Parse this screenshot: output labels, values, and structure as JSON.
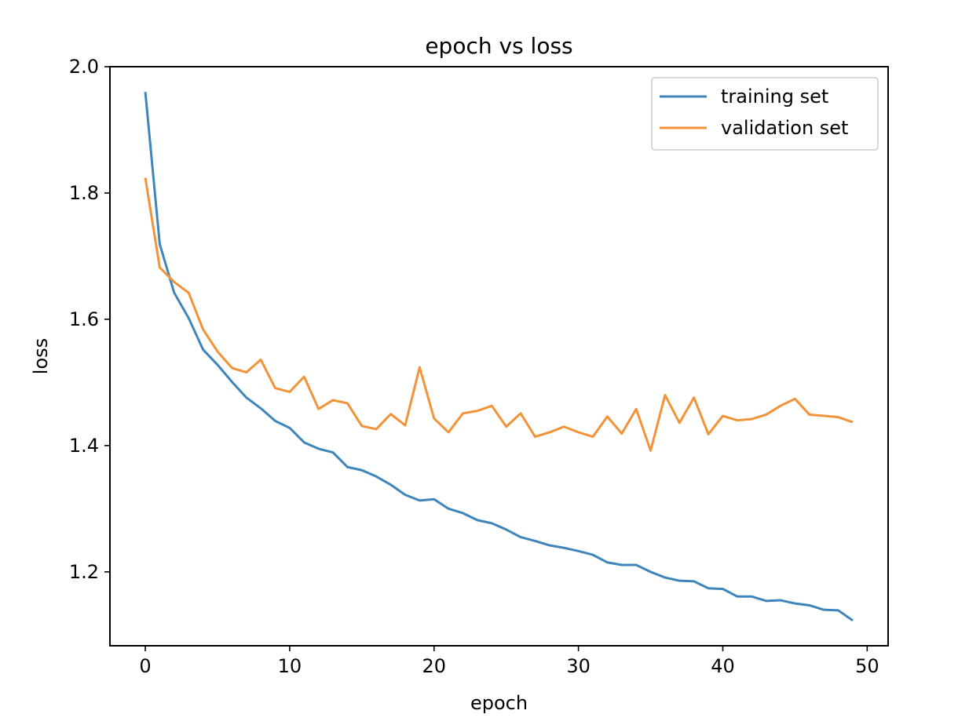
{
  "chart_data": {
    "type": "line",
    "title": "epoch vs loss",
    "xlabel": "epoch",
    "ylabel": "loss",
    "xlim": [
      -2.45,
      51.45
    ],
    "ylim": [
      1.083,
      2.0
    ],
    "xticks": [
      0,
      10,
      20,
      30,
      40,
      50
    ],
    "yticks": [
      1.2,
      1.4,
      1.6,
      1.8,
      2.0
    ],
    "xtick_labels": [
      "0",
      "10",
      "20",
      "30",
      "40",
      "50"
    ],
    "ytick_labels": [
      "1.2",
      "1.4",
      "1.6",
      "1.8",
      "2.0"
    ],
    "grid": false,
    "legend_position": "top-right",
    "x": [
      0,
      1,
      2,
      3,
      4,
      5,
      6,
      7,
      8,
      9,
      10,
      11,
      12,
      13,
      14,
      15,
      16,
      17,
      18,
      19,
      20,
      21,
      22,
      23,
      24,
      25,
      26,
      27,
      28,
      29,
      30,
      31,
      32,
      33,
      34,
      35,
      36,
      37,
      38,
      39,
      40,
      41,
      42,
      43,
      44,
      45,
      46,
      47,
      48,
      49
    ],
    "series": [
      {
        "name": "training set",
        "color": "#3e85bb",
        "values": [
          1.96,
          1.719,
          1.642,
          1.602,
          1.552,
          1.528,
          1.501,
          1.476,
          1.459,
          1.439,
          1.428,
          1.405,
          1.395,
          1.389,
          1.366,
          1.361,
          1.351,
          1.338,
          1.322,
          1.313,
          1.315,
          1.3,
          1.293,
          1.282,
          1.277,
          1.267,
          1.255,
          1.249,
          1.242,
          1.238,
          1.233,
          1.227,
          1.215,
          1.211,
          1.211,
          1.2,
          1.191,
          1.186,
          1.185,
          1.174,
          1.173,
          1.161,
          1.161,
          1.154,
          1.155,
          1.15,
          1.147,
          1.14,
          1.139,
          1.123
        ]
      },
      {
        "name": "validation set",
        "color": "#f2933a",
        "values": [
          1.824,
          1.682,
          1.659,
          1.642,
          1.584,
          1.549,
          1.523,
          1.516,
          1.536,
          1.491,
          1.485,
          1.509,
          1.458,
          1.472,
          1.467,
          1.431,
          1.426,
          1.45,
          1.432,
          1.524,
          1.443,
          1.421,
          1.451,
          1.455,
          1.463,
          1.43,
          1.451,
          1.414,
          1.421,
          1.43,
          1.421,
          1.414,
          1.446,
          1.419,
          1.458,
          1.392,
          1.48,
          1.436,
          1.476,
          1.418,
          1.447,
          1.44,
          1.442,
          1.449,
          1.463,
          1.474,
          1.449,
          1.447,
          1.445,
          1.437
        ]
      }
    ]
  }
}
